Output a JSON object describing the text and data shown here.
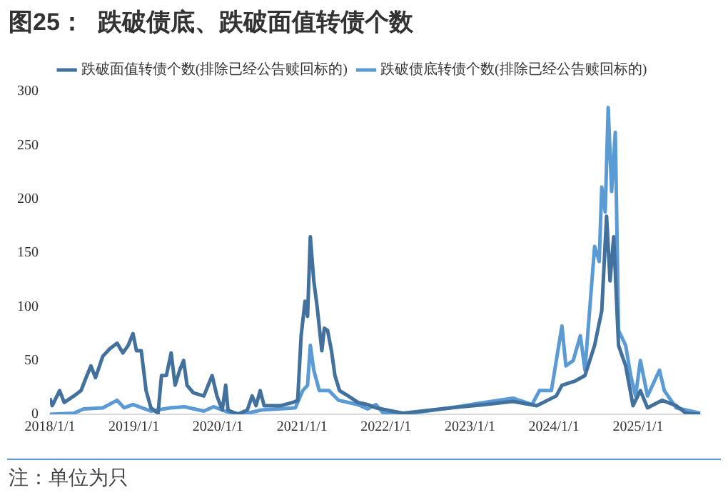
{
  "chart_data": {
    "type": "line",
    "title": "图25：  跌破债底、跌破面值转债个数",
    "annotations": [
      "注：单位为只"
    ],
    "xlim": [
      "2018-01-01",
      "2025-10-01"
    ],
    "xticks": [
      {
        "value": "2018-01-01",
        "label": "2018/1/1"
      },
      {
        "value": "2019-01-01",
        "label": "2019/1/1"
      },
      {
        "value": "2020-01-01",
        "label": "2020/1/1"
      },
      {
        "value": "2021-01-01",
        "label": "2021/1/1"
      },
      {
        "value": "2022-01-01",
        "label": "2022/1/1"
      },
      {
        "value": "2023-01-01",
        "label": "2023/1/1"
      },
      {
        "value": "2024-01-01",
        "label": "2024/1/1"
      },
      {
        "value": "2025-01-01",
        "label": "2025/1/1"
      }
    ],
    "ylim": [
      0,
      300
    ],
    "yticks": [
      0,
      50,
      100,
      150,
      200,
      250,
      300
    ],
    "grid": false,
    "legend": "top",
    "marker": "none",
    "line_style": "solid",
    "series": [
      {
        "name": "跌破面值转债个数(排除已经公告赎回标的)",
        "color": "#41719c",
        "x": [
          "2018-01-01",
          "2018-01-11",
          "2018-02-12",
          "2018-03-04",
          "2018-04-15",
          "2018-05-16",
          "2018-06-07",
          "2018-06-28",
          "2018-07-18",
          "2018-08-19",
          "2018-09-19",
          "2018-10-20",
          "2018-11-14",
          "2018-12-07",
          "2018-12-28",
          "2019-01-12",
          "2019-02-02",
          "2019-02-23",
          "2019-03-16",
          "2019-04-16",
          "2019-05-01",
          "2019-05-22",
          "2019-06-12",
          "2019-06-29",
          "2019-07-19",
          "2019-08-05",
          "2019-08-20",
          "2019-09-16",
          "2019-11-01",
          "2019-12-07",
          "2019-12-28",
          "2020-01-20",
          "2020-02-04",
          "2020-02-14",
          "2020-03-27",
          "2020-05-08",
          "2020-05-29",
          "2020-06-15",
          "2020-07-03",
          "2020-07-20",
          "2020-10-01",
          "2020-11-22",
          "2020-12-13",
          "2020-12-28",
          "2021-01-14",
          "2021-01-25",
          "2021-02-06",
          "2021-02-21",
          "2021-03-07",
          "2021-03-28",
          "2021-04-08",
          "2021-04-22",
          "2021-05-09",
          "2021-05-24",
          "2021-06-13",
          "2021-07-21",
          "2021-09-01",
          "2021-10-13",
          "2021-11-18",
          "2022-03-15",
          "2022-10-09",
          "2023-03-04",
          "2023-07-07",
          "2023-10-19",
          "2024-01-11",
          "2024-02-05",
          "2024-04-03",
          "2024-05-15",
          "2024-06-26",
          "2024-07-27",
          "2024-08-17",
          "2024-09-01",
          "2024-09-17",
          "2024-10-08",
          "2024-11-08",
          "2024-12-10",
          "2025-01-11",
          "2025-02-11",
          "2025-04-15",
          "2025-06-16",
          "2025-07-28",
          "2025-09-28"
        ],
        "values": [
          15,
          8,
          22,
          11,
          17,
          22,
          34,
          45,
          34,
          54,
          61,
          66,
          57,
          64,
          75,
          59,
          59,
          22,
          6,
          1,
          36,
          36,
          57,
          27,
          41,
          50,
          27,
          20,
          17,
          36,
          17,
          4,
          27,
          4,
          0,
          4,
          17,
          8,
          22,
          8,
          8,
          11,
          13,
          73,
          105,
          91,
          165,
          124,
          101,
          59,
          80,
          78,
          59,
          36,
          22,
          17,
          11,
          9,
          6,
          1,
          6,
          9,
          12,
          8,
          17,
          27,
          31,
          36,
          64,
          96,
          184,
          124,
          165,
          64,
          45,
          8,
          22,
          6,
          13,
          8,
          1,
          0
        ]
      },
      {
        "name": "跌破债底转债个数(排除已经公告赎回标的)",
        "color": "#5b9bd5",
        "x": [
          "2018-01-01",
          "2018-04-15",
          "2018-05-27",
          "2018-08-19",
          "2018-10-20",
          "2018-11-20",
          "2018-12-28",
          "2019-03-16",
          "2019-06-08",
          "2019-08-09",
          "2019-11-01",
          "2019-12-13",
          "2020-02-14",
          "2020-04-17",
          "2020-07-09",
          "2020-12-03",
          "2021-01-04",
          "2021-01-25",
          "2021-02-06",
          "2021-02-21",
          "2021-03-17",
          "2021-04-28",
          "2021-06-09",
          "2021-09-01",
          "2021-10-13",
          "2021-11-18",
          "2021-12-21",
          "2022-03-15",
          "2022-10-09",
          "2023-03-04",
          "2023-07-07",
          "2023-09-28",
          "2023-10-30",
          "2023-12-21",
          "2024-02-05",
          "2024-02-22",
          "2024-03-25",
          "2024-04-25",
          "2024-05-15",
          "2024-06-26",
          "2024-07-16",
          "2024-07-27",
          "2024-08-11",
          "2024-08-24",
          "2024-09-08",
          "2024-09-24",
          "2024-10-08",
          "2024-11-08",
          "2024-11-30",
          "2024-12-21",
          "2025-01-11",
          "2025-02-11",
          "2025-04-04",
          "2025-04-25",
          "2025-06-16",
          "2025-09-28"
        ],
        "values": [
          0,
          1,
          5,
          6,
          13,
          6,
          9,
          3,
          6,
          7,
          3,
          7,
          2,
          0,
          4,
          6,
          22,
          27,
          64,
          41,
          22,
          22,
          13,
          9,
          5,
          9,
          1,
          0,
          6,
          11,
          15,
          9,
          22,
          22,
          82,
          45,
          50,
          73,
          41,
          156,
          142,
          211,
          188,
          285,
          207,
          262,
          78,
          64,
          36,
          17,
          50,
          17,
          41,
          22,
          6,
          1
        ]
      }
    ]
  }
}
